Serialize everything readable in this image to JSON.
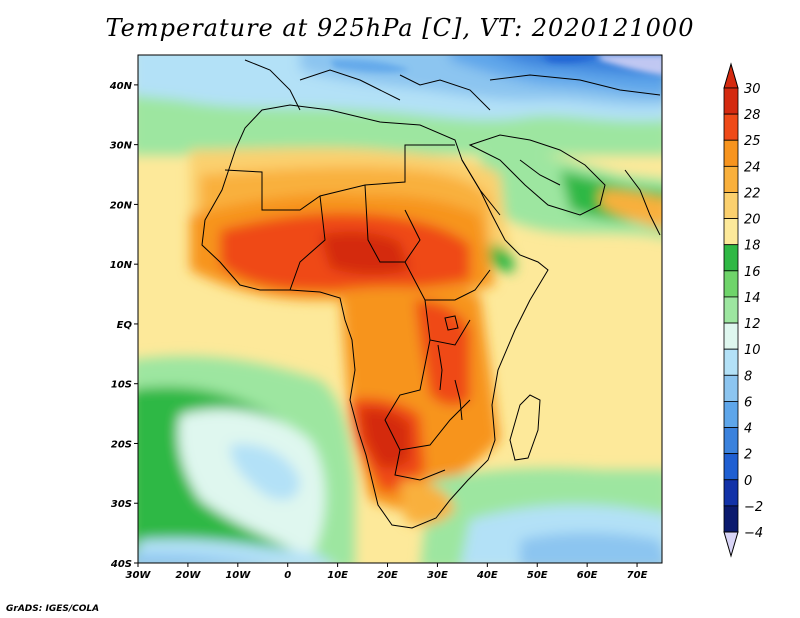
{
  "title": "Temperature at 925hPa [C], VT: 2020121000",
  "credit": "GrADS: IGES/COLA",
  "map": {
    "projection": "latlon",
    "lon_range": [
      -30,
      75
    ],
    "lat_range": [
      -40,
      45
    ],
    "lon_ticks": [
      {
        "value": -30,
        "label": "30W"
      },
      {
        "value": -20,
        "label": "20W"
      },
      {
        "value": -10,
        "label": "10W"
      },
      {
        "value": 0,
        "label": "0"
      },
      {
        "value": 10,
        "label": "10E"
      },
      {
        "value": 20,
        "label": "20E"
      },
      {
        "value": 30,
        "label": "30E"
      },
      {
        "value": 40,
        "label": "40E"
      },
      {
        "value": 50,
        "label": "50E"
      },
      {
        "value": 60,
        "label": "60E"
      },
      {
        "value": 70,
        "label": "70E"
      }
    ],
    "lat_ticks": [
      {
        "value": 40,
        "label": "40N"
      },
      {
        "value": 30,
        "label": "30N"
      },
      {
        "value": 20,
        "label": "20N"
      },
      {
        "value": 10,
        "label": "10N"
      },
      {
        "value": 0,
        "label": "EQ"
      },
      {
        "value": -10,
        "label": "10S"
      },
      {
        "value": -20,
        "label": "20S"
      },
      {
        "value": -30,
        "label": "30S"
      },
      {
        "value": -40,
        "label": "40S"
      }
    ]
  },
  "colorbar": {
    "labels": [
      "30",
      "28",
      "25",
      "24",
      "22",
      "20",
      "18",
      "16",
      "14",
      "12",
      "10",
      "8",
      "6",
      "4",
      "2",
      "0",
      "−2",
      "−4"
    ],
    "colors": [
      "#d42a10",
      "#ef4a18",
      "#f7941e",
      "#f9b03c",
      "#fbd06e",
      "#fde99a",
      "#2fb844",
      "#6fd46a",
      "#9de6a0",
      "#dff7ef",
      "#b3e1f7",
      "#8cc5f0",
      "#5ea6ea",
      "#3b82dd",
      "#1f5fd2",
      "#1232a8",
      "#0b1a6e"
    ],
    "top_arrow": "#d42a10",
    "bottom_arrow": "#d8d4f6"
  }
}
